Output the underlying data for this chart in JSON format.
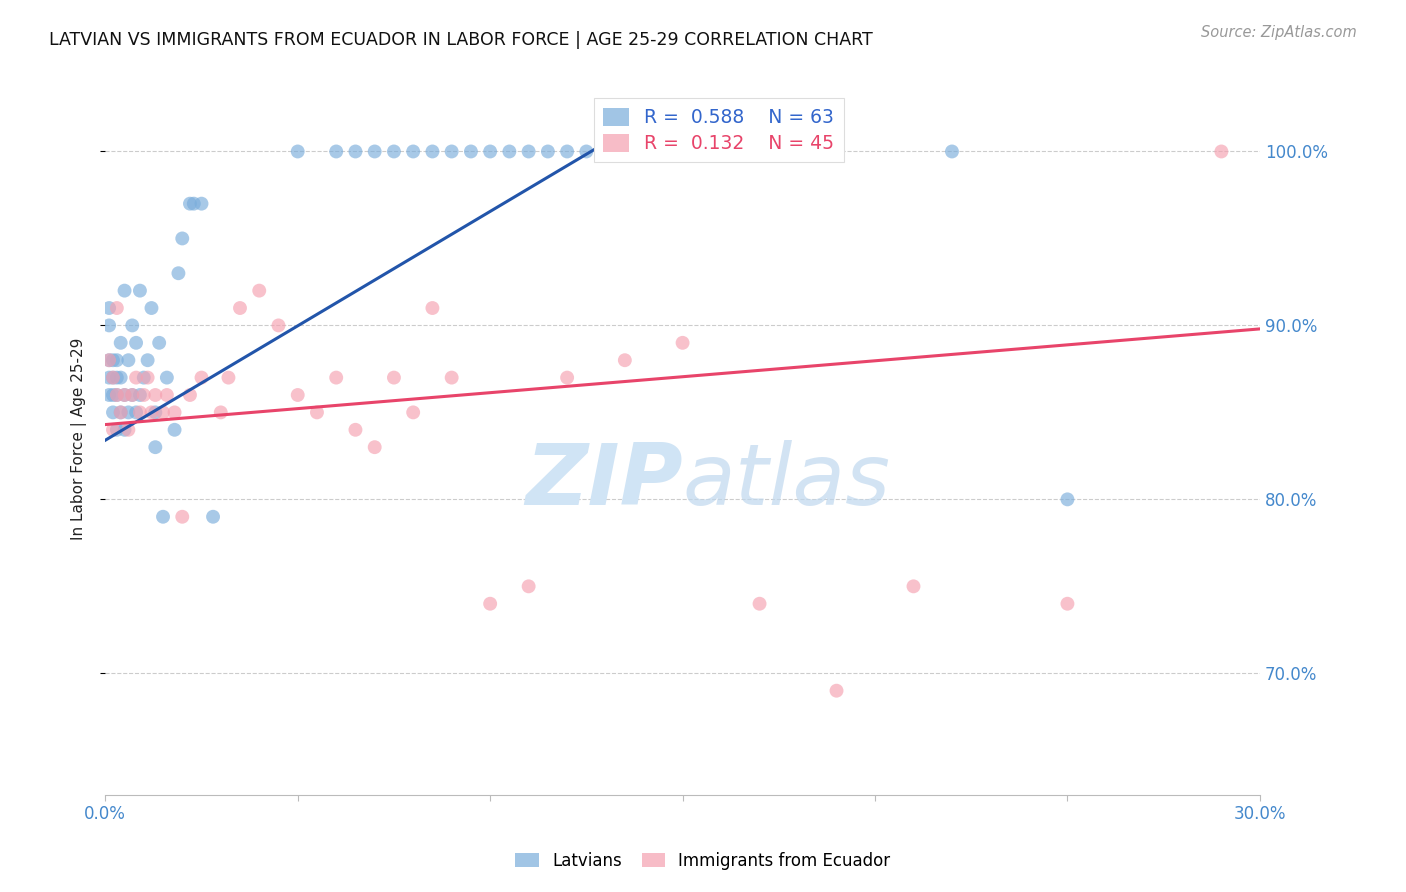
{
  "title": "LATVIAN VS IMMIGRANTS FROM ECUADOR IN LABOR FORCE | AGE 25-29 CORRELATION CHART",
  "source": "Source: ZipAtlas.com",
  "ylabel": "In Labor Force | Age 25-29",
  "xlim": [
    0.0,
    0.3
  ],
  "ylim": [
    0.63,
    1.04
  ],
  "yticks": [
    0.7,
    0.8,
    0.9,
    1.0
  ],
  "ytick_labels": [
    "70.0%",
    "80.0%",
    "90.0%",
    "100.0%"
  ],
  "xticks": [
    0.0,
    0.05,
    0.1,
    0.15,
    0.2,
    0.25,
    0.3
  ],
  "xtick_labels": [
    "0.0%",
    "",
    "",
    "",
    "",
    "",
    "30.0%"
  ],
  "background_color": "#ffffff",
  "grid_color": "#cccccc",
  "blue_color": "#7aaddb",
  "pink_color": "#f5a0b0",
  "blue_line_color": "#2255aa",
  "pink_line_color": "#e8446a",
  "r_blue": 0.588,
  "n_blue": 63,
  "r_pink": 0.132,
  "n_pink": 45,
  "latvian_x": [
    0.001,
    0.001,
    0.001,
    0.001,
    0.001,
    0.002,
    0.002,
    0.002,
    0.002,
    0.003,
    0.003,
    0.003,
    0.003,
    0.004,
    0.004,
    0.004,
    0.005,
    0.005,
    0.005,
    0.006,
    0.006,
    0.007,
    0.007,
    0.008,
    0.008,
    0.009,
    0.009,
    0.01,
    0.011,
    0.012,
    0.013,
    0.013,
    0.014,
    0.015,
    0.016,
    0.018,
    0.019,
    0.02,
    0.022,
    0.023,
    0.025,
    0.028,
    0.05,
    0.06,
    0.065,
    0.07,
    0.075,
    0.08,
    0.085,
    0.09,
    0.095,
    0.1,
    0.105,
    0.11,
    0.115,
    0.12,
    0.125,
    0.13,
    0.14,
    0.15,
    0.18,
    0.22,
    0.25
  ],
  "latvian_y": [
    0.86,
    0.87,
    0.88,
    0.9,
    0.91,
    0.85,
    0.86,
    0.87,
    0.88,
    0.84,
    0.86,
    0.87,
    0.88,
    0.85,
    0.87,
    0.89,
    0.84,
    0.86,
    0.92,
    0.85,
    0.88,
    0.86,
    0.9,
    0.85,
    0.89,
    0.86,
    0.92,
    0.87,
    0.88,
    0.91,
    0.83,
    0.85,
    0.89,
    0.79,
    0.87,
    0.84,
    0.93,
    0.95,
    0.97,
    0.97,
    0.97,
    0.79,
    1.0,
    1.0,
    1.0,
    1.0,
    1.0,
    1.0,
    1.0,
    1.0,
    1.0,
    1.0,
    1.0,
    1.0,
    1.0,
    1.0,
    1.0,
    1.0,
    1.0,
    1.0,
    1.0,
    1.0,
    0.8
  ],
  "ecuador_x": [
    0.001,
    0.002,
    0.002,
    0.003,
    0.003,
    0.004,
    0.005,
    0.006,
    0.007,
    0.008,
    0.009,
    0.01,
    0.011,
    0.012,
    0.013,
    0.015,
    0.016,
    0.018,
    0.02,
    0.022,
    0.025,
    0.03,
    0.032,
    0.035,
    0.04,
    0.045,
    0.05,
    0.055,
    0.06,
    0.065,
    0.07,
    0.075,
    0.08,
    0.085,
    0.09,
    0.1,
    0.11,
    0.12,
    0.135,
    0.15,
    0.17,
    0.19,
    0.21,
    0.25,
    0.29
  ],
  "ecuador_y": [
    0.88,
    0.84,
    0.87,
    0.86,
    0.91,
    0.85,
    0.86,
    0.84,
    0.86,
    0.87,
    0.85,
    0.86,
    0.87,
    0.85,
    0.86,
    0.85,
    0.86,
    0.85,
    0.79,
    0.86,
    0.87,
    0.85,
    0.87,
    0.91,
    0.92,
    0.9,
    0.86,
    0.85,
    0.87,
    0.84,
    0.83,
    0.87,
    0.85,
    0.91,
    0.87,
    0.74,
    0.75,
    0.87,
    0.88,
    0.89,
    0.74,
    0.69,
    0.75,
    0.74,
    1.0
  ],
  "blue_trend_x0": 0.0,
  "blue_trend_y0": 0.834,
  "blue_trend_x1": 0.13,
  "blue_trend_y1": 1.005,
  "pink_trend_x0": 0.0,
  "pink_trend_y0": 0.843,
  "pink_trend_x1": 0.3,
  "pink_trend_y1": 0.898,
  "watermark_zip": "ZIP",
  "watermark_atlas": "atlas",
  "watermark_color": "#d0e4f5"
}
